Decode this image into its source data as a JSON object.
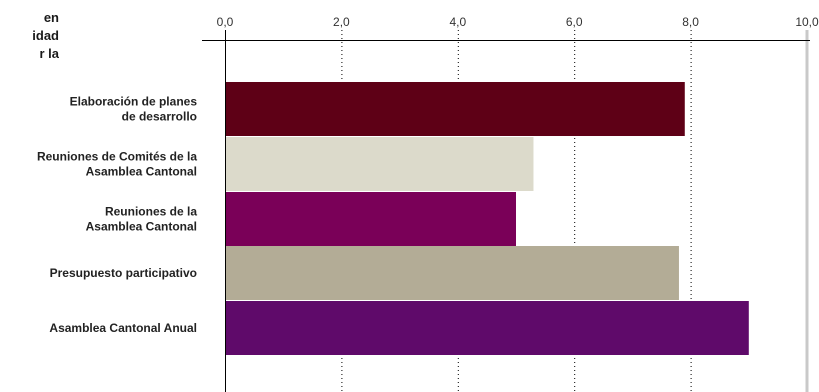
{
  "chart_data": {
    "type": "bar",
    "orientation": "horizontal",
    "title": "en\nidad\nr la",
    "xlim": [
      0,
      10
    ],
    "xticks": [
      "0,0",
      "2,0",
      "4,0",
      "6,0",
      "8,0",
      "10,0"
    ],
    "grid": "vertical-dotted",
    "categories": [
      [
        "Elaboración de planes",
        "de desarrollo"
      ],
      [
        "Reuniones de Comités de la",
        "Asamblea Cantonal"
      ],
      [
        "Reuniones de la",
        "Asamblea Cantonal"
      ],
      [
        "Presupuesto participativo"
      ],
      [
        "Asamblea Cantonal Anual"
      ]
    ],
    "values": [
      7.9,
      5.3,
      5.0,
      7.8,
      9.0
    ],
    "colors": [
      "#5e0016",
      "#dcdacb",
      "#7a0058",
      "#b3ac96",
      "#5f0a6a"
    ]
  }
}
